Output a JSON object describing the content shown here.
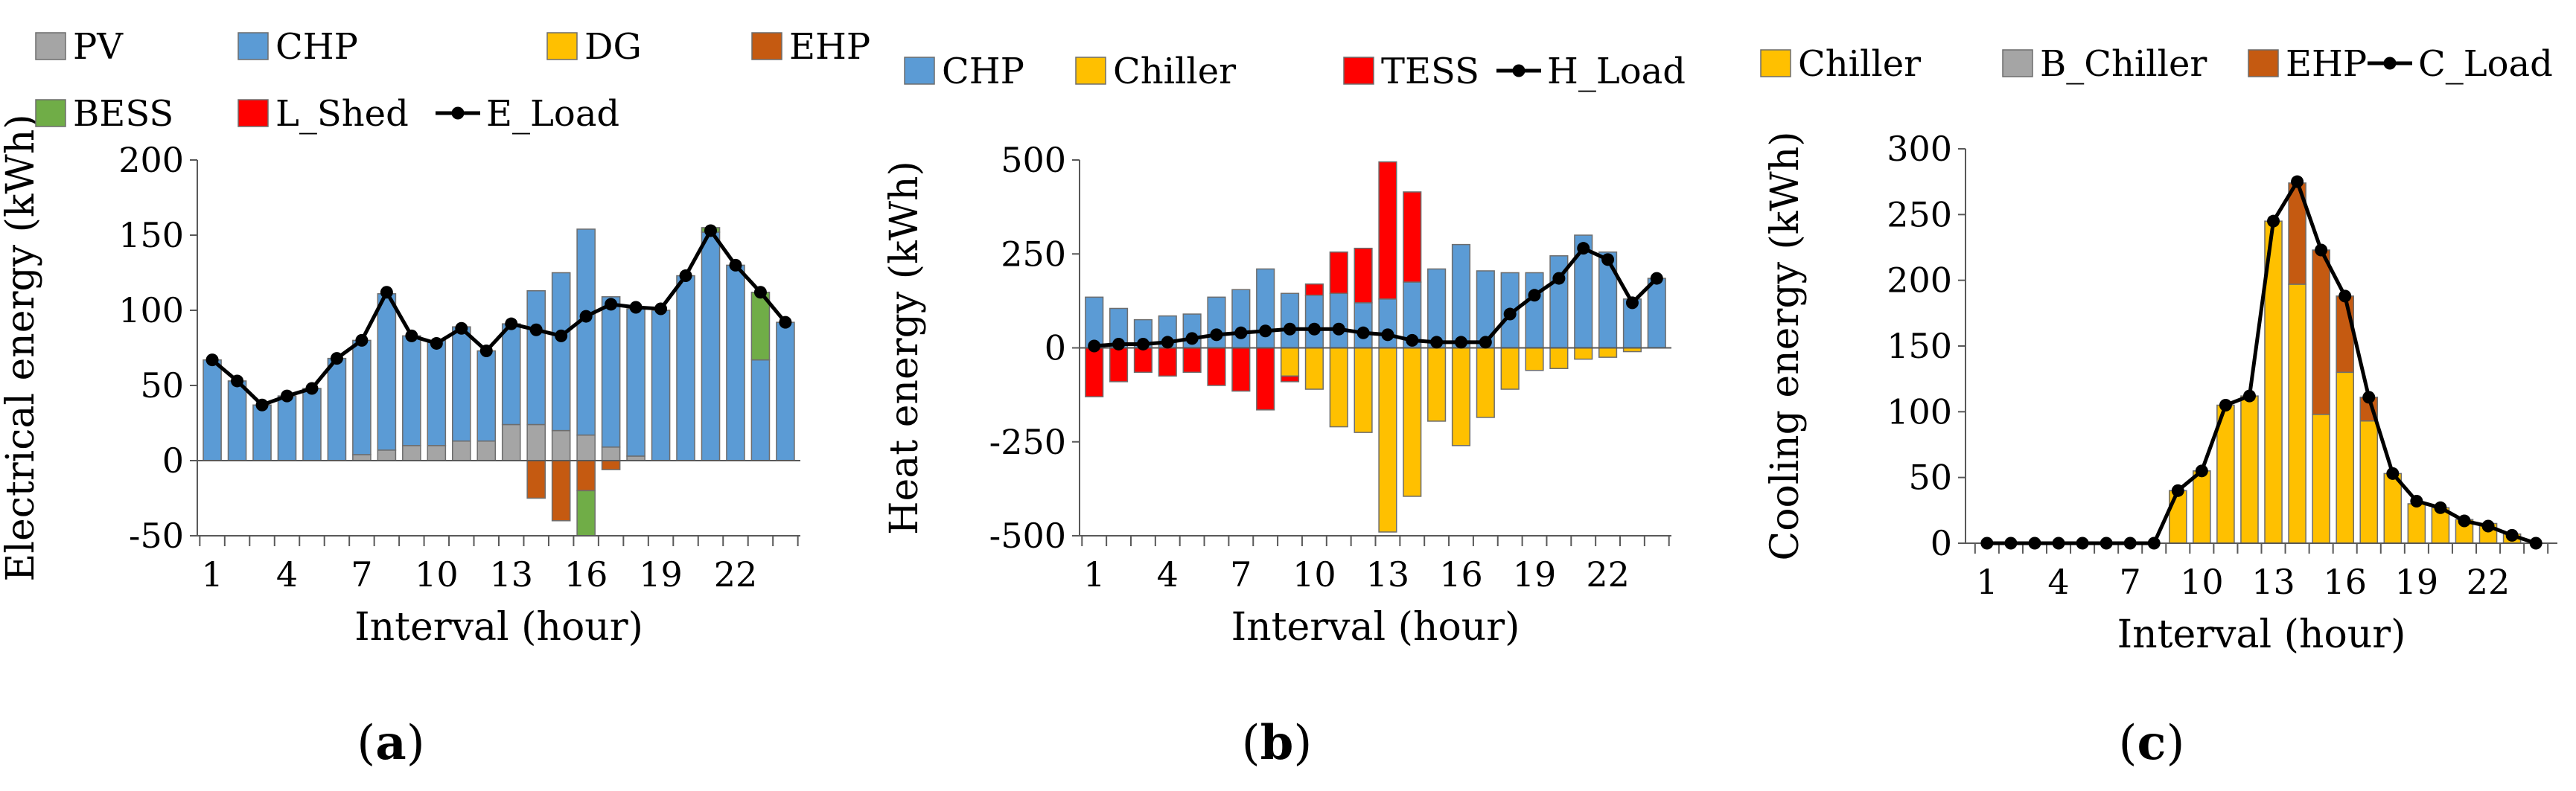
{
  "chart_data": [
    {
      "type": "bar",
      "stacked": true,
      "panel_label": "a",
      "xlabel": "Interval (hour)",
      "ylabel": "Electrical energy (kWh)",
      "ylim": [
        -50,
        200
      ],
      "yticks": [
        -50,
        0,
        50,
        100,
        150,
        200
      ],
      "x": [
        1,
        2,
        3,
        4,
        5,
        6,
        7,
        8,
        9,
        10,
        11,
        12,
        13,
        14,
        15,
        16,
        17,
        18,
        19,
        20,
        21,
        22,
        23,
        24
      ],
      "x_tick_labels": [
        "1",
        "4",
        "7",
        "10",
        "13",
        "16",
        "19",
        "22"
      ],
      "grid": false,
      "legend_position": "top",
      "series": [
        {
          "name": "PV",
          "color": "#A5A5A5",
          "values": [
            0,
            0,
            0,
            0,
            0,
            0,
            4,
            7,
            10,
            10,
            13,
            13,
            24,
            24,
            20,
            17,
            9,
            3,
            0,
            0,
            0,
            0,
            0,
            0
          ]
        },
        {
          "name": "CHP",
          "color": "#5B9BD5",
          "values": [
            67,
            53,
            37,
            43,
            48,
            68,
            76,
            104,
            73,
            70,
            76,
            60,
            67,
            89,
            105,
            137,
            100,
            98,
            100,
            123,
            152,
            130,
            67,
            92
          ]
        },
        {
          "name": "DG",
          "color": "#FFC000",
          "values": [
            0,
            0,
            0,
            0,
            0,
            0,
            0,
            0,
            0,
            0,
            0,
            0,
            0,
            0,
            0,
            0,
            0,
            0,
            0,
            0,
            0,
            0,
            0,
            0
          ]
        },
        {
          "name": "EHP",
          "color": "#C55A11",
          "values": [
            0,
            0,
            0,
            0,
            0,
            0,
            0,
            0,
            0,
            0,
            0,
            0,
            0,
            -25,
            -40,
            -20,
            -6,
            0,
            0,
            0,
            0,
            0,
            0,
            0
          ]
        },
        {
          "name": "BESS",
          "color": "#70AD47",
          "values": [
            0,
            0,
            0,
            0,
            0,
            0,
            0,
            0,
            0,
            0,
            0,
            0,
            0,
            0,
            0,
            -30,
            0,
            0,
            0,
            0,
            3,
            0,
            45,
            0
          ]
        },
        {
          "name": "L_Shed",
          "color": "#FF0000",
          "values": [
            0,
            0,
            0,
            0,
            0,
            0,
            0,
            0,
            0,
            0,
            0,
            0,
            0,
            0,
            0,
            0,
            0,
            0,
            0,
            0,
            0,
            0,
            0,
            0
          ]
        }
      ],
      "load": {
        "name": "E_Load",
        "color": "#000000",
        "values": [
          67,
          53,
          37,
          43,
          48,
          68,
          80,
          112,
          83,
          78,
          88,
          73,
          91,
          87,
          83,
          96,
          104,
          102,
          101,
          123,
          153,
          130,
          112,
          92
        ]
      }
    },
    {
      "type": "bar",
      "stacked": true,
      "panel_label": "b",
      "xlabel": "Interval (hour)",
      "ylabel": "Heat energy (kWh)",
      "ylim": [
        -500,
        500
      ],
      "yticks": [
        -500,
        -250,
        0,
        250,
        500
      ],
      "x": [
        1,
        2,
        3,
        4,
        5,
        6,
        7,
        8,
        9,
        10,
        11,
        12,
        13,
        14,
        15,
        16,
        17,
        18,
        19,
        20,
        21,
        22,
        23,
        24
      ],
      "x_tick_labels": [
        "1",
        "4",
        "7",
        "10",
        "13",
        "16",
        "19",
        "22"
      ],
      "grid": false,
      "legend_position": "top",
      "series": [
        {
          "name": "CHP",
          "color": "#5B9BD5",
          "values": [
            135,
            105,
            75,
            85,
            90,
            135,
            155,
            210,
            145,
            140,
            145,
            120,
            130,
            175,
            210,
            275,
            205,
            200,
            200,
            245,
            300,
            255,
            130,
            185
          ]
        },
        {
          "name": "Chiller",
          "color": "#FFC000",
          "values": [
            0,
            0,
            0,
            0,
            0,
            0,
            0,
            0,
            -75,
            -110,
            -210,
            -225,
            -490,
            -395,
            -195,
            -260,
            -185,
            -110,
            -60,
            -55,
            -30,
            -25,
            -10,
            0
          ]
        },
        {
          "name": "TESS",
          "color": "#FF0000",
          "values": [
            -130,
            -90,
            -65,
            -75,
            -65,
            -100,
            -115,
            -165,
            -15,
            30,
            110,
            145,
            365,
            240,
            0,
            0,
            0,
            0,
            0,
            0,
            0,
            0,
            0,
            0
          ]
        }
      ],
      "load": {
        "name": "H_Load",
        "color": "#000000",
        "values": [
          5,
          10,
          10,
          15,
          25,
          35,
          40,
          45,
          50,
          50,
          50,
          40,
          35,
          20,
          15,
          15,
          15,
          90,
          140,
          185,
          265,
          235,
          120,
          185
        ]
      }
    },
    {
      "type": "bar",
      "stacked": true,
      "panel_label": "c",
      "xlabel": "Interval (hour)",
      "ylabel": "Cooling energy (kWh)",
      "ylim": [
        0,
        300
      ],
      "yticks": [
        0,
        50,
        100,
        150,
        200,
        250,
        300
      ],
      "x": [
        1,
        2,
        3,
        4,
        5,
        6,
        7,
        8,
        9,
        10,
        11,
        12,
        13,
        14,
        15,
        16,
        17,
        18,
        19,
        20,
        21,
        22,
        23,
        24
      ],
      "x_tick_labels": [
        "1",
        "4",
        "7",
        "10",
        "13",
        "16",
        "19",
        "22"
      ],
      "grid": false,
      "legend_position": "top",
      "series": [
        {
          "name": "Chiller",
          "color": "#FFC000",
          "values": [
            0,
            0,
            0,
            0,
            0,
            0,
            0,
            0,
            40,
            55,
            105,
            112,
            245,
            197,
            98,
            130,
            93,
            53,
            30,
            27,
            18,
            15,
            7,
            0
          ]
        },
        {
          "name": "B_Chiller",
          "color": "#A5A5A5",
          "values": [
            0,
            0,
            0,
            0,
            0,
            0,
            0,
            0,
            0,
            0,
            0,
            0,
            0,
            0,
            0,
            0,
            0,
            0,
            0,
            0,
            0,
            0,
            0,
            0
          ]
        },
        {
          "name": "EHP",
          "color": "#C55A11",
          "values": [
            0,
            0,
            0,
            0,
            0,
            0,
            0,
            0,
            0,
            0,
            0,
            0,
            0,
            77,
            125,
            58,
            18,
            0,
            0,
            0,
            0,
            0,
            0,
            0
          ]
        }
      ],
      "load": {
        "name": "C_Load",
        "color": "#000000",
        "values": [
          0,
          0,
          0,
          0,
          0,
          0,
          0,
          0,
          40,
          55,
          105,
          112,
          245,
          275,
          223,
          188,
          111,
          53,
          32,
          27,
          17,
          13,
          6,
          0
        ]
      }
    }
  ]
}
